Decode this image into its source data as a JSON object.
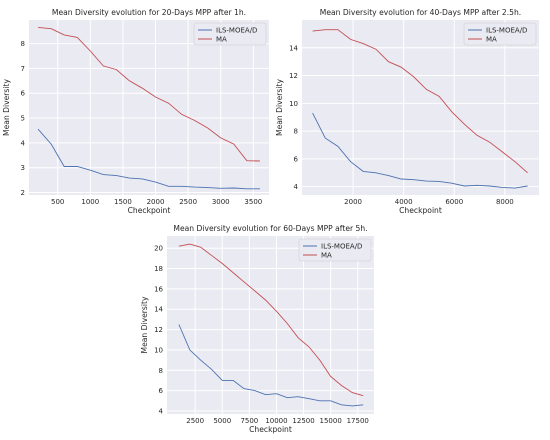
{
  "chart_data": [
    {
      "type": "line",
      "title": "Mean Diversity evolution for 20-Days MPP after 1h.",
      "xlabel": "Checkpoint",
      "ylabel": "Mean Diversity",
      "xlim": [
        60,
        3740
      ],
      "ylim": [
        1.9,
        8.95
      ],
      "xticks": [
        500,
        1000,
        1500,
        2000,
        2500,
        3000,
        3500
      ],
      "yticks": [
        2,
        3,
        4,
        5,
        6,
        7,
        8
      ],
      "grid": true,
      "legend": "top-right",
      "series": [
        {
          "name": "ILS-MOEA/D",
          "color": "#4c72b0",
          "x": [
            200,
            400,
            600,
            800,
            1000,
            1200,
            1400,
            1600,
            1800,
            2000,
            2200,
            2400,
            2600,
            2800,
            3000,
            3200,
            3400,
            3600
          ],
          "y": [
            4.55,
            3.95,
            3.05,
            3.05,
            2.9,
            2.72,
            2.68,
            2.58,
            2.55,
            2.42,
            2.25,
            2.25,
            2.22,
            2.2,
            2.17,
            2.18,
            2.15,
            2.15
          ]
        },
        {
          "name": "MA",
          "color": "#c44e52",
          "x": [
            200,
            400,
            600,
            800,
            1000,
            1200,
            1400,
            1600,
            1800,
            2000,
            2200,
            2400,
            2600,
            2800,
            3000,
            3200,
            3400,
            3600
          ],
          "y": [
            8.65,
            8.6,
            8.35,
            8.25,
            7.7,
            7.1,
            6.95,
            6.5,
            6.2,
            5.85,
            5.6,
            5.15,
            4.9,
            4.6,
            4.2,
            3.95,
            3.28,
            3.27
          ]
        }
      ]
    },
    {
      "type": "line",
      "title": "Mean Diversity evolution for 40-Days MPP after 2.5h.",
      "xlabel": "Checkpoint",
      "ylabel": "Mean Diversity",
      "xlim": [
        -20,
        9350
      ],
      "ylim": [
        3.4,
        16.0
      ],
      "xticks": [
        2000,
        4000,
        6000,
        8000
      ],
      "yticks": [
        4,
        6,
        8,
        10,
        12,
        14
      ],
      "grid": true,
      "legend": "top-right",
      "series": [
        {
          "name": "ILS-MOEA/D",
          "color": "#4c72b0",
          "x": [
            400,
            900,
            1400,
            1900,
            2400,
            2900,
            3400,
            3900,
            4400,
            4900,
            5400,
            5900,
            6400,
            6900,
            7400,
            7900,
            8400,
            8900
          ],
          "y": [
            9.3,
            7.5,
            6.9,
            5.8,
            5.1,
            5.0,
            4.8,
            4.55,
            4.5,
            4.4,
            4.38,
            4.25,
            4.05,
            4.1,
            4.05,
            3.95,
            3.9,
            4.05
          ]
        },
        {
          "name": "MA",
          "color": "#c44e52",
          "x": [
            400,
            900,
            1400,
            1900,
            2400,
            2900,
            3400,
            3900,
            4400,
            4900,
            5400,
            5900,
            6400,
            6900,
            7400,
            7900,
            8400,
            8900
          ],
          "y": [
            15.2,
            15.3,
            15.3,
            14.6,
            14.3,
            13.9,
            13.0,
            12.6,
            11.9,
            11.0,
            10.5,
            9.4,
            8.5,
            7.7,
            7.2,
            6.5,
            5.8,
            5.0
          ]
        }
      ]
    },
    {
      "type": "line",
      "title": "Mean Diversity evolution for 60-Days MPP after 5h.",
      "xlabel": "Checkpoint",
      "ylabel": "Mean Diversity",
      "xlim": [
        -100,
        19000
      ],
      "ylim": [
        3.7,
        21.2
      ],
      "xticks": [
        2500,
        5000,
        7500,
        10000,
        12500,
        15000,
        17500
      ],
      "yticks": [
        4,
        6,
        8,
        10,
        12,
        14,
        16,
        18,
        20
      ],
      "grid": true,
      "legend": "top-right",
      "series": [
        {
          "name": "ILS-MOEA/D",
          "color": "#4c72b0",
          "x": [
            1000,
            2000,
            3000,
            4000,
            5000,
            6000,
            7000,
            8000,
            9000,
            10000,
            11000,
            12000,
            13000,
            14000,
            15000,
            16000,
            17000,
            18000
          ],
          "y": [
            12.5,
            10.0,
            9.0,
            8.1,
            7.0,
            7.0,
            6.2,
            6.0,
            5.6,
            5.7,
            5.3,
            5.4,
            5.2,
            5.0,
            5.0,
            4.6,
            4.5,
            4.6
          ]
        },
        {
          "name": "MA",
          "color": "#c44e52",
          "x": [
            1000,
            2000,
            3000,
            4000,
            5000,
            6000,
            7000,
            8000,
            9000,
            10000,
            11000,
            12000,
            13000,
            14000,
            15000,
            16000,
            17000,
            18000
          ],
          "y": [
            20.2,
            20.4,
            20.1,
            19.3,
            18.5,
            17.6,
            16.7,
            15.8,
            14.9,
            13.8,
            12.6,
            11.2,
            10.3,
            9.0,
            7.4,
            6.5,
            5.8,
            5.5
          ]
        }
      ]
    }
  ]
}
